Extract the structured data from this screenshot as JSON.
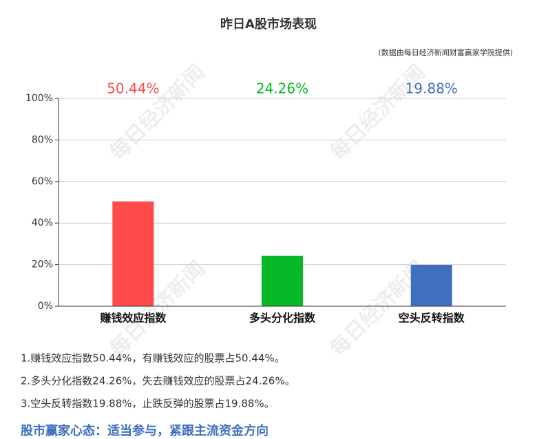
{
  "chart_data": {
    "type": "bar",
    "title": "昨日A股市场表现",
    "source": "(数据由每日经济新闻财富赢家学院提供)",
    "categories": [
      "赚钱效应指数",
      "多头分化指数",
      "空头反转指数"
    ],
    "values": [
      50.44,
      24.26,
      19.88
    ],
    "value_labels": [
      "50.44%",
      "24.26%",
      "19.88%"
    ],
    "colors": [
      "#ff4a4a",
      "#06b826",
      "#3f6fbf"
    ],
    "ylim": [
      0,
      100
    ],
    "yticks": [
      {
        "value": 0,
        "label": "0%"
      },
      {
        "value": 20,
        "label": "20%"
      },
      {
        "value": 40,
        "label": "40%"
      },
      {
        "value": 60,
        "label": "60%"
      },
      {
        "value": 80,
        "label": "80%"
      },
      {
        "value": 100,
        "label": "100%"
      }
    ],
    "grid": true
  },
  "notes": [
    "1.赚钱效应指数50.44%，有赚钱效应的股票占50.44%。",
    "2.多头分化指数24.26%，失去赚钱效应的股票占24.26%。",
    "3.空头反转指数19.88%，止跌反弹的股票占19.88%。"
  ],
  "headline": "股市赢家心态：适当参与，紧跟主流资金方向",
  "watermark": "每日经济新闻"
}
